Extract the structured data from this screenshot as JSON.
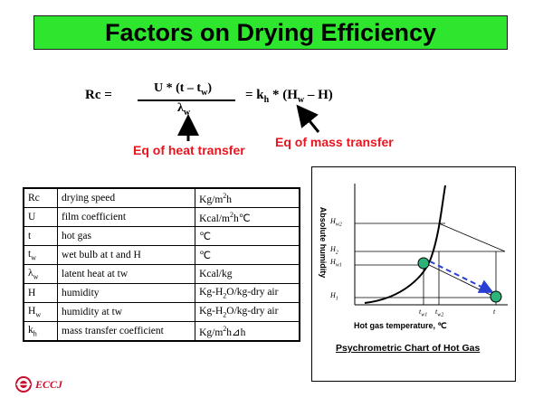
{
  "title": "Factors on Drying Efficiency",
  "equation": {
    "lhs": "Rc =",
    "numerator_main": "U * (t – t",
    "numerator_sub": "w",
    "numerator_close": ")",
    "denominator_main": "λ",
    "denominator_sub": "w",
    "rhs_a": "= k",
    "rhs_sub1": "h",
    "rhs_b": " * (H",
    "rhs_sub2": "w",
    "rhs_c": " – H)"
  },
  "annotations": {
    "heat_transfer": "Eq of heat transfer",
    "mass_transfer": "Eq of mass transfer"
  },
  "table": {
    "rows": [
      {
        "symbol": "Rc",
        "desc": "drying speed",
        "unit": "Kg/m²h"
      },
      {
        "symbol": "U",
        "desc": "film coefficient",
        "unit": "Kcal/m²h℃"
      },
      {
        "symbol": "t",
        "desc": "hot gas",
        "unit": "℃"
      },
      {
        "symbol": "tw",
        "desc": "wet bulb at t and H",
        "unit": "℃"
      },
      {
        "symbol": "λw",
        "desc": "latent heat at tw",
        "unit": "Kcal/kg"
      },
      {
        "symbol": "H",
        "desc": "humidity",
        "unit": "Kg-H₂O/kg-dry air"
      },
      {
        "symbol": "Hw",
        "desc": "humidity at tw",
        "unit": "Kg-H₂O/kg-dry air"
      },
      {
        "symbol": "kh",
        "desc": "mass transfer coefficient",
        "unit": "Kg/m²h⊿h"
      }
    ]
  },
  "chart": {
    "y_axis_label": "Absolute humidity",
    "x_axis_label": "Hot gas temperature, ℃",
    "caption": "Psychrometric Chart of Hot Gas",
    "y_ticks": {
      "hw2": "Hw2",
      "h2": "H2",
      "hw1": "Hw1",
      "h1": "H1"
    },
    "x_ticks": {
      "tw1": "tw1",
      "tw2": "tw2",
      "t": "t"
    }
  },
  "logo_text": "ECCJ",
  "colors": {
    "title_bg": "#2ee62e",
    "annotation": "#e8141e",
    "point": "#2db37a",
    "arrow": "#2a3fd4",
    "logo": "#c8102e"
  }
}
